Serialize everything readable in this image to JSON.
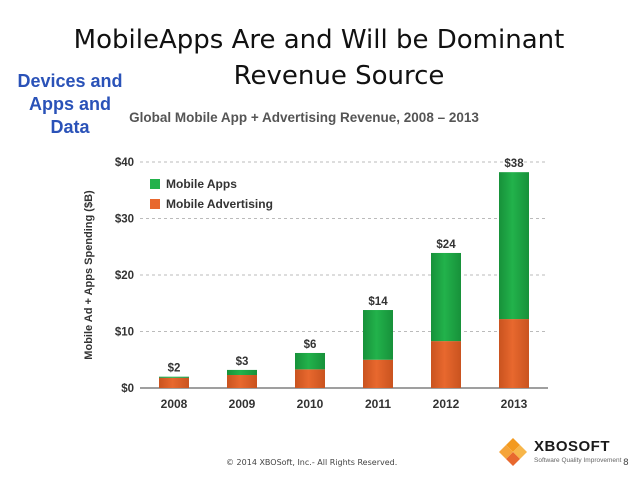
{
  "slide": {
    "title_line1": "MobileApps Are and Will be Dominant",
    "title_line2": "Revenue Source",
    "side_tag": [
      "Devices and",
      "Apps and",
      "Data"
    ],
    "footer": "© 2014 XBOSoft, Inc.- All Rights Reserved.",
    "page_number": "8",
    "logo": {
      "brand": "XBOSOFT",
      "tagline": "Software Quality Improvement",
      "icon": "diamond-logo-icon"
    }
  },
  "chart_data": {
    "type": "bar",
    "stacked": true,
    "title": "Global Mobile App + Advertising Revenue, 2008 – 2013",
    "ylabel": "Mobile Ad + Apps Spending ($B)",
    "xlabel": "",
    "categories": [
      "2008",
      "2009",
      "2010",
      "2011",
      "2012",
      "2013"
    ],
    "series": [
      {
        "name": "Mobile Advertising",
        "color": "#e8682e",
        "values": [
          1.8,
          2.3,
          3.3,
          5.0,
          8.3,
          12.2
        ]
      },
      {
        "name": "Mobile Apps",
        "color": "#22b24b",
        "values": [
          0.2,
          0.9,
          2.9,
          8.8,
          15.6,
          26.0
        ]
      }
    ],
    "totals_labels": [
      "$2",
      "$3",
      "$6",
      "$14",
      "$24",
      "$38"
    ],
    "yticks": [
      "$0",
      "$10",
      "$20",
      "$30",
      "$40"
    ],
    "ytick_values": [
      0,
      10,
      20,
      30,
      40
    ],
    "ylim": [
      0,
      40
    ],
    "grid": true,
    "legend": "top-left"
  }
}
